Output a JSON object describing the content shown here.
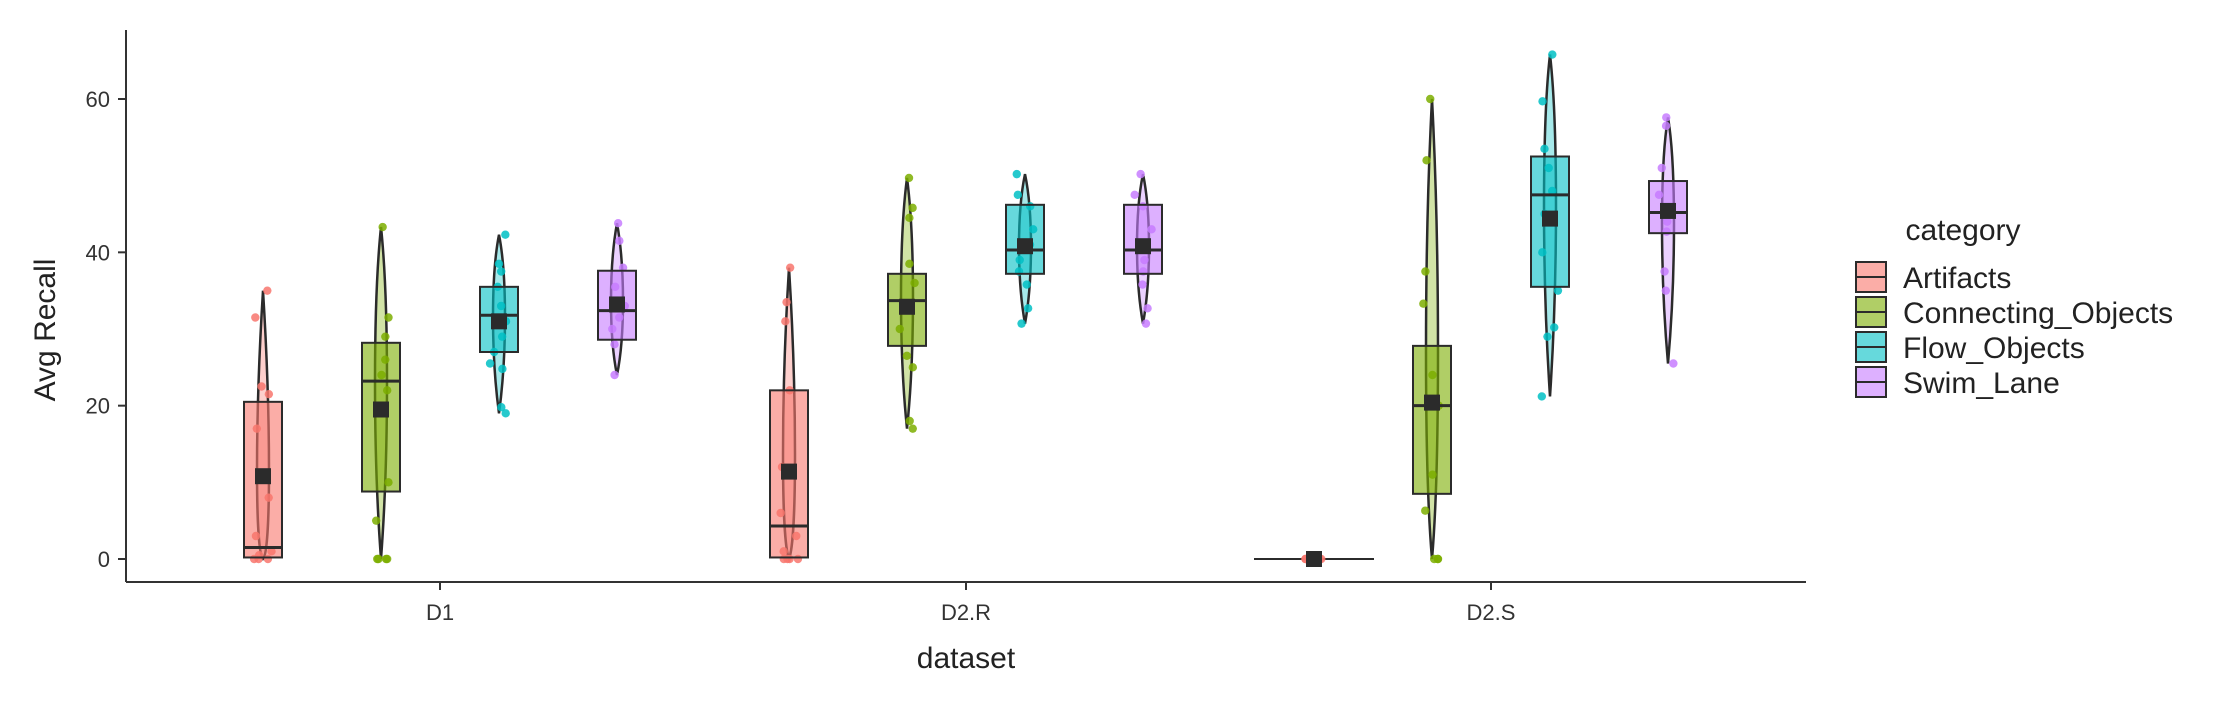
{
  "chart_data": {
    "type": "box",
    "xlabel": "dataset",
    "ylabel": "Avg Recall",
    "ylim": [
      -3,
      69
    ],
    "yticks": [
      0,
      20,
      40,
      60
    ],
    "categories": [
      "D1",
      "D2.R",
      "D2.S"
    ],
    "legend": {
      "title": "category",
      "placement": "right",
      "entries": [
        "Artifacts",
        "Connecting_Objects",
        "Flow_Objects",
        "Swim_Lane"
      ]
    },
    "colors": {
      "Artifacts": "#F8766D",
      "Connecting_Objects": "#7CAE00",
      "Flow_Objects": "#00BFC4",
      "Swim_Lane": "#C77CFF",
      "outline": "#2b2b2b",
      "axis": "#333333"
    },
    "series": [
      {
        "name": "Artifacts",
        "boxes": [
          {
            "category": "D1",
            "min": 0,
            "q1": 0.2,
            "median": 1.5,
            "q3": 20.5,
            "max": 35,
            "mean": 10.8,
            "points": [
              35,
              31.5,
              22.5,
              21.5,
              17,
              8,
              3,
              1,
              0.5,
              0,
              0,
              0
            ]
          },
          {
            "category": "D2.R",
            "min": 0,
            "q1": 0.2,
            "median": 4.3,
            "q3": 22,
            "max": 38,
            "mean": 11.4,
            "points": [
              38,
              33.5,
              31,
              22,
              12,
              6,
              3,
              1,
              0,
              0,
              0,
              0
            ]
          },
          {
            "category": "D2.S",
            "min": 0,
            "q1": 0,
            "median": 0,
            "q3": 0,
            "max": 0,
            "mean": 0,
            "points": [
              0,
              0,
              0,
              0,
              0,
              0,
              0,
              0
            ]
          }
        ]
      },
      {
        "name": "Connecting_Objects",
        "boxes": [
          {
            "category": "D1",
            "min": 0,
            "q1": 8.8,
            "median": 23.2,
            "q3": 28.2,
            "max": 43.3,
            "mean": 19.5,
            "points": [
              43.3,
              31.5,
              29,
              26,
              24,
              22,
              10,
              5,
              0,
              0,
              0,
              0
            ]
          },
          {
            "category": "D2.R",
            "min": 17,
            "q1": 27.8,
            "median": 33.7,
            "q3": 37.2,
            "max": 49.7,
            "mean": 32.9,
            "points": [
              49.7,
              45.8,
              44.5,
              38.5,
              36,
              33,
              30,
              26.5,
              25,
              18,
              17
            ]
          },
          {
            "category": "D2.S",
            "min": 0,
            "q1": 8.5,
            "median": 20,
            "q3": 27.8,
            "max": 60,
            "mean": 20.4,
            "points": [
              60,
              52,
              37.5,
              33.3,
              24,
              20,
              11,
              6.3,
              0,
              0,
              0
            ]
          }
        ]
      },
      {
        "name": "Flow_Objects",
        "boxes": [
          {
            "category": "D1",
            "min": 19,
            "q1": 27,
            "median": 31.8,
            "q3": 35.5,
            "max": 42.3,
            "mean": 31,
            "points": [
              42.3,
              38.5,
              37.5,
              35.5,
              33,
              31,
              29,
              27,
              25.5,
              24.8,
              19.8,
              19
            ]
          },
          {
            "category": "D2.R",
            "min": 30.7,
            "q1": 37.2,
            "median": 40.3,
            "q3": 46.2,
            "max": 50.2,
            "mean": 40.8,
            "points": [
              50.2,
              47.5,
              46,
              43,
              41,
              39,
              37.5,
              35.8,
              32.7,
              30.7
            ]
          },
          {
            "category": "D2.S",
            "min": 21.2,
            "q1": 35.5,
            "median": 47.5,
            "q3": 52.5,
            "max": 65.8,
            "mean": 44.4,
            "points": [
              65.8,
              59.7,
              53.5,
              51,
              48,
              45,
              40,
              35,
              30.2,
              29,
              21.2
            ]
          }
        ]
      },
      {
        "name": "Swim_Lane",
        "boxes": [
          {
            "category": "D1",
            "min": 24,
            "q1": 28.6,
            "median": 32.4,
            "q3": 37.6,
            "max": 43.8,
            "mean": 33.2,
            "points": [
              43.8,
              41.5,
              38,
              35.5,
              33,
              31.5,
              30,
              28,
              24
            ]
          },
          {
            "category": "D2.R",
            "min": 30.7,
            "q1": 37.2,
            "median": 40.3,
            "q3": 46.2,
            "max": 50.2,
            "mean": 40.8,
            "points": [
              50.2,
              47.5,
              46,
              43,
              41,
              39,
              37.5,
              35.8,
              32.7,
              30.7
            ]
          },
          {
            "category": "D2.S",
            "min": 25.5,
            "q1": 42.5,
            "median": 45.2,
            "q3": 49.3,
            "max": 57.6,
            "mean": 45.4,
            "points": [
              57.6,
              56.5,
              51,
              47.5,
              45,
              44,
              42.7,
              37.5,
              35,
              25.5
            ]
          }
        ]
      }
    ]
  }
}
